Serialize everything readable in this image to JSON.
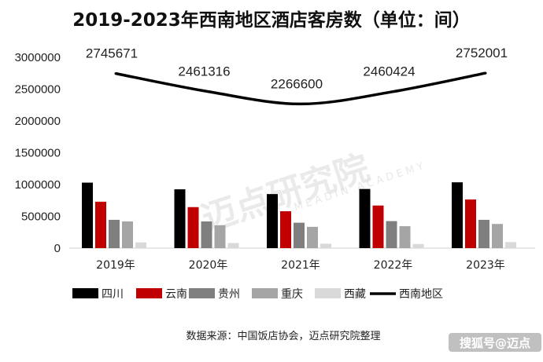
{
  "chart_data": {
    "type": "bar",
    "title": "2019-2023年西南地区酒店客房数（单位：间）",
    "categories": [
      "2019年",
      "2020年",
      "2021年",
      "2022年",
      "2023年"
    ],
    "ylim": [
      0,
      3000000
    ],
    "yticks": [
      "3000000",
      "2500000",
      "2000000",
      "1500000",
      "1000000",
      "500000",
      "0"
    ],
    "ytick_values": [
      3000000,
      2500000,
      2000000,
      1500000,
      1000000,
      500000,
      0
    ],
    "series": [
      {
        "name": "四川",
        "color": "#000000",
        "values": [
          1030000,
          925000,
          850000,
          930000,
          1035000
        ]
      },
      {
        "name": "云南",
        "color": "#c00000",
        "values": [
          730000,
          645000,
          580000,
          670000,
          765000
        ]
      },
      {
        "name": "贵州",
        "color": "#7f7f7f",
        "values": [
          445000,
          420000,
          400000,
          425000,
          445000
        ]
      },
      {
        "name": "重庆",
        "color": "#a5a5a5",
        "values": [
          420000,
          360000,
          335000,
          345000,
          380000
        ]
      },
      {
        "name": "西藏",
        "color": "#d9d9d9",
        "values": [
          90000,
          80000,
          70000,
          65000,
          95000
        ]
      }
    ],
    "line_series": {
      "name": "西南地区",
      "color": "#000000",
      "values": [
        2745671,
        2461316,
        2266600,
        2460424,
        2752001
      ],
      "labels": [
        "2745671",
        "2461316",
        "2266600",
        "2460424",
        "2752001"
      ]
    },
    "legend": [
      "四川",
      "云南",
      "贵州",
      "重庆",
      "西藏",
      "西南地区"
    ],
    "grid": false,
    "legend_position": "bottom"
  },
  "source_note": "数据来源：中国饭店协会，迈点研究院整理",
  "watermark": {
    "text": "迈点研究院",
    "subtext": "MEADIN ACADEMY"
  },
  "corner_mark": "搜狐号@迈点"
}
